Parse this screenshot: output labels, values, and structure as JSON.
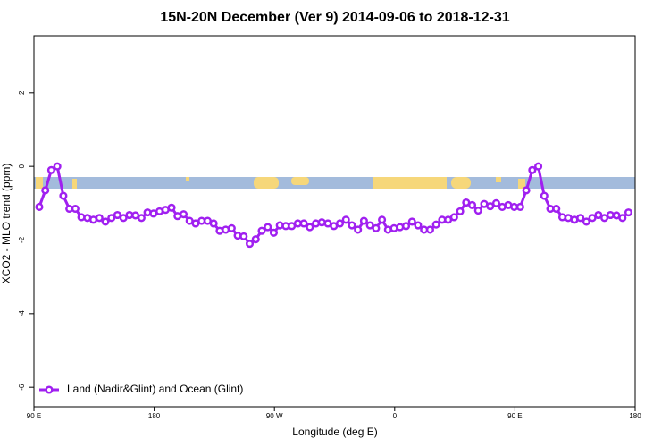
{
  "chart_data": {
    "type": "line",
    "title": "15N-20N December (Ver 9)   2014-09-06 to 2018-12-31",
    "x_label": "Longitude (deg E)",
    "y_label": "XCO2 - MLO trend (ppm)",
    "xlim": [
      90,
      540
    ],
    "ylim": [
      -6.53,
      3.55
    ],
    "xticks": [
      {
        "value": 90,
        "label": "90 E"
      },
      180,
      {
        "value": 270,
        "label": "90 W"
      },
      {
        "value": 360,
        "label": "0"
      },
      {
        "value": 450,
        "label": "90 E"
      },
      {
        "value": 540,
        "label": "180"
      }
    ],
    "yticks": [
      -6,
      -4,
      -2,
      0,
      2
    ],
    "legend": "bottom-left",
    "x": [
      94,
      98.5,
      103,
      107.5,
      112,
      116.5,
      121,
      125.5,
      130,
      134.5,
      139,
      143.5,
      148,
      152.5,
      157,
      161.5,
      166,
      170.5,
      175,
      179.5,
      184,
      188.5,
      193,
      197.5,
      202,
      206.5,
      211,
      215.5,
      220,
      224.5,
      229,
      233.5,
      238,
      242.5,
      247,
      251.5,
      256,
      260.5,
      265,
      269.5,
      274,
      278.5,
      283,
      287.5,
      292,
      296.5,
      301,
      305.5,
      310,
      314.5,
      319,
      323.5,
      328,
      332.5,
      337,
      341.5,
      346,
      350.5,
      355,
      359.5,
      364,
      368.5,
      373,
      377.5,
      382,
      386.5,
      391,
      395.5,
      400,
      404.5,
      409,
      413.5,
      418,
      422.5,
      427,
      431.5,
      436,
      440.5,
      445,
      449.5,
      454,
      458.5,
      463,
      467.5,
      472,
      476.5,
      481,
      485.5,
      490,
      494.5,
      499,
      503.5,
      508,
      512.5,
      517,
      521.5,
      526,
      530.5,
      535
    ],
    "series": [
      {
        "name": "Land (Nadir&Glint) and Ocean (Glint)",
        "color": "#a020f0",
        "values": [
          -1.1,
          -0.65,
          -0.1,
          0,
          -0.8,
          -1.15,
          -1.15,
          -1.38,
          -1.4,
          -1.45,
          -1.4,
          -1.5,
          -1.4,
          -1.32,
          -1.4,
          -1.32,
          -1.33,
          -1.4,
          -1.25,
          -1.28,
          -1.22,
          -1.18,
          -1.12,
          -1.35,
          -1.3,
          -1.48,
          -1.55,
          -1.48,
          -1.48,
          -1.55,
          -1.75,
          -1.72,
          -1.68,
          -1.88,
          -1.9,
          -2.1,
          -1.98,
          -1.75,
          -1.65,
          -1.8,
          -1.6,
          -1.62,
          -1.62,
          -1.55,
          -1.55,
          -1.65,
          -1.55,
          -1.52,
          -1.55,
          -1.62,
          -1.55,
          -1.45,
          -1.6,
          -1.72,
          -1.48,
          -1.6,
          -1.68,
          -1.45,
          -1.72,
          -1.68,
          -1.65,
          -1.62,
          -1.5,
          -1.6,
          -1.72,
          -1.72,
          -1.58,
          -1.45,
          -1.45,
          -1.38,
          -1.22,
          -0.98,
          -1.05,
          -1.2,
          -1.02,
          -1.08,
          -1.0,
          -1.1,
          -1.05,
          -1.1,
          -1.1,
          -0.65,
          -0.1,
          0,
          -0.8,
          -1.15,
          -1.15,
          -1.38,
          -1.4,
          -1.45,
          -1.4,
          -1.5,
          -1.4,
          -1.32,
          -1.4,
          -1.32,
          -1.33,
          -1.4,
          -1.25
        ]
      }
    ]
  }
}
